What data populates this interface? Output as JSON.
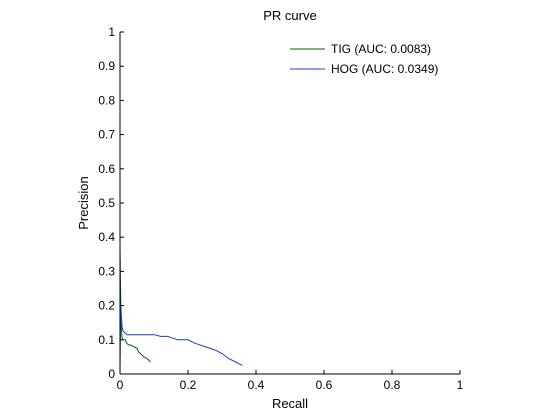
{
  "chart_data": {
    "type": "line",
    "title": "PR curve",
    "xlabel": "Recall",
    "ylabel": "Precision",
    "xlim": [
      0,
      1
    ],
    "ylim": [
      0,
      1
    ],
    "xticks": [
      "0",
      "0.2",
      "0.4",
      "0.6",
      "0.8",
      "1"
    ],
    "yticks": [
      "0",
      "0.1",
      "0.2",
      "0.3",
      "0.4",
      "0.5",
      "0.6",
      "0.7",
      "0.8",
      "0.9",
      "1"
    ],
    "grid": false,
    "legend_position": "top-right",
    "series": [
      {
        "name": "TIG (AUC: 0.0083)",
        "color": "#006400",
        "x": [
          0.0,
          0.001,
          0.002,
          0.003,
          0.004,
          0.005,
          0.006,
          0.008,
          0.01,
          0.015,
          0.02,
          0.025,
          0.03,
          0.04,
          0.05,
          0.055,
          0.06,
          0.07,
          0.08,
          0.09
        ],
        "y": [
          0.375,
          0.3,
          0.22,
          0.17,
          0.14,
          0.12,
          0.105,
          0.1,
          0.1,
          0.1,
          0.09,
          0.085,
          0.085,
          0.08,
          0.075,
          0.065,
          0.06,
          0.05,
          0.045,
          0.035
        ]
      },
      {
        "name": "HOG (AUC: 0.0349)",
        "color": "#1f3fbf",
        "x": [
          0.0,
          0.002,
          0.004,
          0.006,
          0.008,
          0.01,
          0.015,
          0.02,
          0.05,
          0.1,
          0.12,
          0.14,
          0.17,
          0.2,
          0.22,
          0.25,
          0.28,
          0.3,
          0.32,
          0.34,
          0.36
        ],
        "y": [
          0.0,
          0.2,
          0.17,
          0.14,
          0.13,
          0.125,
          0.12,
          0.115,
          0.115,
          0.115,
          0.11,
          0.11,
          0.1,
          0.1,
          0.09,
          0.08,
          0.07,
          0.06,
          0.045,
          0.035,
          0.025
        ]
      }
    ]
  }
}
